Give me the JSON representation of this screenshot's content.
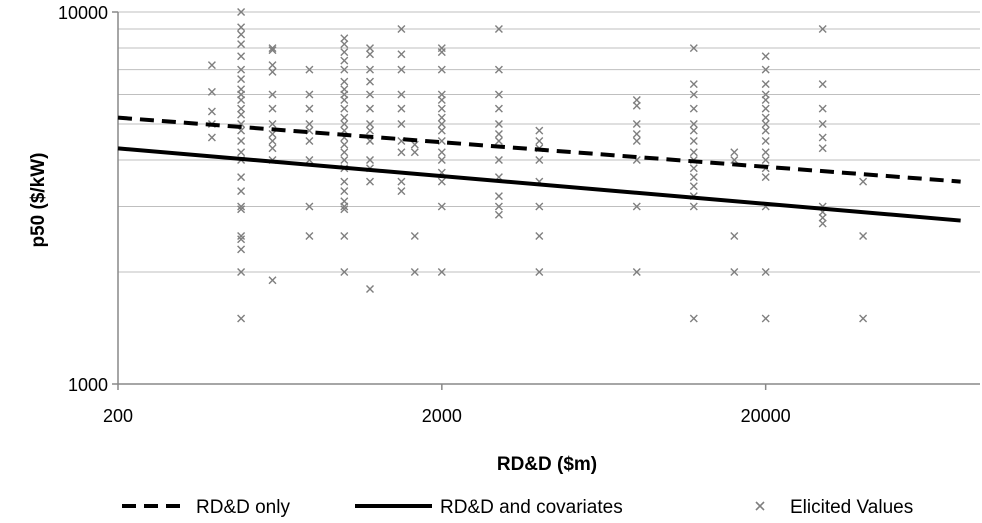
{
  "chart_data": {
    "type": "scatter",
    "title": "",
    "xlabel": "RD&D ($m)",
    "ylabel": "p50 ($/kW)",
    "x_scale": "log",
    "y_scale": "log",
    "xlim": [
      200,
      80000
    ],
    "ylim": [
      1000,
      10000
    ],
    "x_ticks": [
      "200",
      "2000",
      "20000"
    ],
    "y_ticks": [
      "1000",
      "10000"
    ],
    "grid": "horizontal minor",
    "legend_position": "bottom",
    "colors": {
      "dashed_line": "#000000",
      "solid_line": "#000000",
      "markers": "#7f7f7f",
      "grid": "#bfbfbf"
    },
    "series": [
      {
        "name": "RD&D only",
        "style": "dashed",
        "x": [
          200,
          80000
        ],
        "y": [
          5200,
          3500
        ]
      },
      {
        "name": "RD&D and covariates",
        "style": "solid",
        "x": [
          200,
          80000
        ],
        "y": [
          4300,
          2750
        ]
      },
      {
        "name": "Elicited Values",
        "style": "marker-x",
        "points": [
          [
            390,
            7200
          ],
          [
            390,
            6100
          ],
          [
            390,
            5400
          ],
          [
            390,
            5000
          ],
          [
            390,
            4600
          ],
          [
            480,
            10000
          ],
          [
            480,
            9100
          ],
          [
            480,
            8700
          ],
          [
            480,
            8200
          ],
          [
            480,
            7600
          ],
          [
            480,
            7000
          ],
          [
            480,
            6600
          ],
          [
            480,
            6200
          ],
          [
            480,
            6000
          ],
          [
            480,
            5800
          ],
          [
            480,
            5500
          ],
          [
            480,
            5300
          ],
          [
            480,
            5000
          ],
          [
            480,
            4800
          ],
          [
            480,
            4500
          ],
          [
            480,
            4200
          ],
          [
            480,
            4000
          ],
          [
            480,
            3600
          ],
          [
            480,
            3300
          ],
          [
            480,
            3000
          ],
          [
            480,
            2950
          ],
          [
            480,
            2500
          ],
          [
            480,
            2450
          ],
          [
            480,
            2300
          ],
          [
            480,
            2000
          ],
          [
            480,
            1500
          ],
          [
            600,
            8000
          ],
          [
            600,
            7900
          ],
          [
            600,
            7200
          ],
          [
            600,
            6900
          ],
          [
            600,
            6000
          ],
          [
            600,
            5500
          ],
          [
            600,
            5000
          ],
          [
            600,
            4700
          ],
          [
            600,
            4500
          ],
          [
            600,
            4300
          ],
          [
            600,
            4000
          ],
          [
            600,
            1900
          ],
          [
            780,
            7000
          ],
          [
            780,
            6000
          ],
          [
            780,
            5500
          ],
          [
            780,
            5000
          ],
          [
            780,
            4800
          ],
          [
            780,
            4500
          ],
          [
            780,
            4000
          ],
          [
            780,
            3000
          ],
          [
            780,
            2500
          ],
          [
            1000,
            8500
          ],
          [
            1000,
            8200
          ],
          [
            1000,
            7800
          ],
          [
            1000,
            7400
          ],
          [
            1000,
            7000
          ],
          [
            1000,
            6500
          ],
          [
            1000,
            6200
          ],
          [
            1000,
            6000
          ],
          [
            1000,
            5800
          ],
          [
            1000,
            5500
          ],
          [
            1000,
            5200
          ],
          [
            1000,
            5000
          ],
          [
            1000,
            4800
          ],
          [
            1000,
            4600
          ],
          [
            1000,
            4400
          ],
          [
            1000,
            4200
          ],
          [
            1000,
            4000
          ],
          [
            1000,
            3800
          ],
          [
            1000,
            3500
          ],
          [
            1000,
            3300
          ],
          [
            1000,
            3100
          ],
          [
            1000,
            3000
          ],
          [
            1000,
            2950
          ],
          [
            1000,
            2500
          ],
          [
            1000,
            2000
          ],
          [
            1200,
            8000
          ],
          [
            1200,
            7700
          ],
          [
            1200,
            7000
          ],
          [
            1200,
            6500
          ],
          [
            1200,
            6000
          ],
          [
            1200,
            5500
          ],
          [
            1200,
            5000
          ],
          [
            1200,
            4800
          ],
          [
            1200,
            4500
          ],
          [
            1200,
            4000
          ],
          [
            1200,
            3800
          ],
          [
            1200,
            3500
          ],
          [
            1200,
            1800
          ],
          [
            1500,
            9000
          ],
          [
            1500,
            7700
          ],
          [
            1500,
            7000
          ],
          [
            1500,
            6000
          ],
          [
            1500,
            5500
          ],
          [
            1500,
            5000
          ],
          [
            1500,
            4500
          ],
          [
            1500,
            4200
          ],
          [
            1500,
            3500
          ],
          [
            1500,
            3300
          ],
          [
            1650,
            4400
          ],
          [
            1650,
            4200
          ],
          [
            1650,
            2500
          ],
          [
            1650,
            2000
          ],
          [
            2000,
            8000
          ],
          [
            2000,
            7800
          ],
          [
            2000,
            7000
          ],
          [
            2000,
            6000
          ],
          [
            2000,
            5800
          ],
          [
            2000,
            5500
          ],
          [
            2000,
            5200
          ],
          [
            2000,
            5000
          ],
          [
            2000,
            4800
          ],
          [
            2000,
            4500
          ],
          [
            2000,
            4200
          ],
          [
            2000,
            4000
          ],
          [
            2000,
            3700
          ],
          [
            2000,
            3500
          ],
          [
            2000,
            3000
          ],
          [
            2000,
            2000
          ],
          [
            3000,
            9000
          ],
          [
            3000,
            7000
          ],
          [
            3000,
            6000
          ],
          [
            3000,
            5500
          ],
          [
            3000,
            5000
          ],
          [
            3000,
            4700
          ],
          [
            3000,
            4500
          ],
          [
            3000,
            4000
          ],
          [
            3000,
            3600
          ],
          [
            3000,
            3200
          ],
          [
            3000,
            3000
          ],
          [
            3000,
            2850
          ],
          [
            4000,
            4800
          ],
          [
            4000,
            4500
          ],
          [
            4000,
            4300
          ],
          [
            4000,
            4000
          ],
          [
            4000,
            3500
          ],
          [
            4000,
            3000
          ],
          [
            4000,
            2500
          ],
          [
            4000,
            2000
          ],
          [
            8000,
            5800
          ],
          [
            8000,
            5600
          ],
          [
            8000,
            5000
          ],
          [
            8000,
            4700
          ],
          [
            8000,
            4500
          ],
          [
            8000,
            4000
          ],
          [
            8000,
            3000
          ],
          [
            8000,
            2000
          ],
          [
            12000,
            8000
          ],
          [
            12000,
            6400
          ],
          [
            12000,
            6000
          ],
          [
            12000,
            5500
          ],
          [
            12000,
            5000
          ],
          [
            12000,
            4800
          ],
          [
            12000,
            4500
          ],
          [
            12000,
            4200
          ],
          [
            12000,
            4000
          ],
          [
            12000,
            3800
          ],
          [
            12000,
            3600
          ],
          [
            12000,
            3400
          ],
          [
            12000,
            3200
          ],
          [
            12000,
            3000
          ],
          [
            12000,
            1500
          ],
          [
            16000,
            4200
          ],
          [
            16000,
            4000
          ],
          [
            16000,
            2500
          ],
          [
            16000,
            2000
          ],
          [
            20000,
            7600
          ],
          [
            20000,
            7000
          ],
          [
            20000,
            6400
          ],
          [
            20000,
            6000
          ],
          [
            20000,
            5800
          ],
          [
            20000,
            5500
          ],
          [
            20000,
            5200
          ],
          [
            20000,
            5000
          ],
          [
            20000,
            4800
          ],
          [
            20000,
            4500
          ],
          [
            20000,
            4200
          ],
          [
            20000,
            4000
          ],
          [
            20000,
            3800
          ],
          [
            20000,
            3600
          ],
          [
            20000,
            3000
          ],
          [
            20000,
            2000
          ],
          [
            20000,
            1500
          ],
          [
            30000,
            9000
          ],
          [
            30000,
            6400
          ],
          [
            30000,
            5500
          ],
          [
            30000,
            5000
          ],
          [
            30000,
            4600
          ],
          [
            30000,
            4300
          ],
          [
            30000,
            3000
          ],
          [
            30000,
            2900
          ],
          [
            30000,
            2800
          ],
          [
            30000,
            2700
          ],
          [
            40000,
            3500
          ],
          [
            40000,
            2500
          ],
          [
            40000,
            1500
          ]
        ]
      }
    ]
  }
}
